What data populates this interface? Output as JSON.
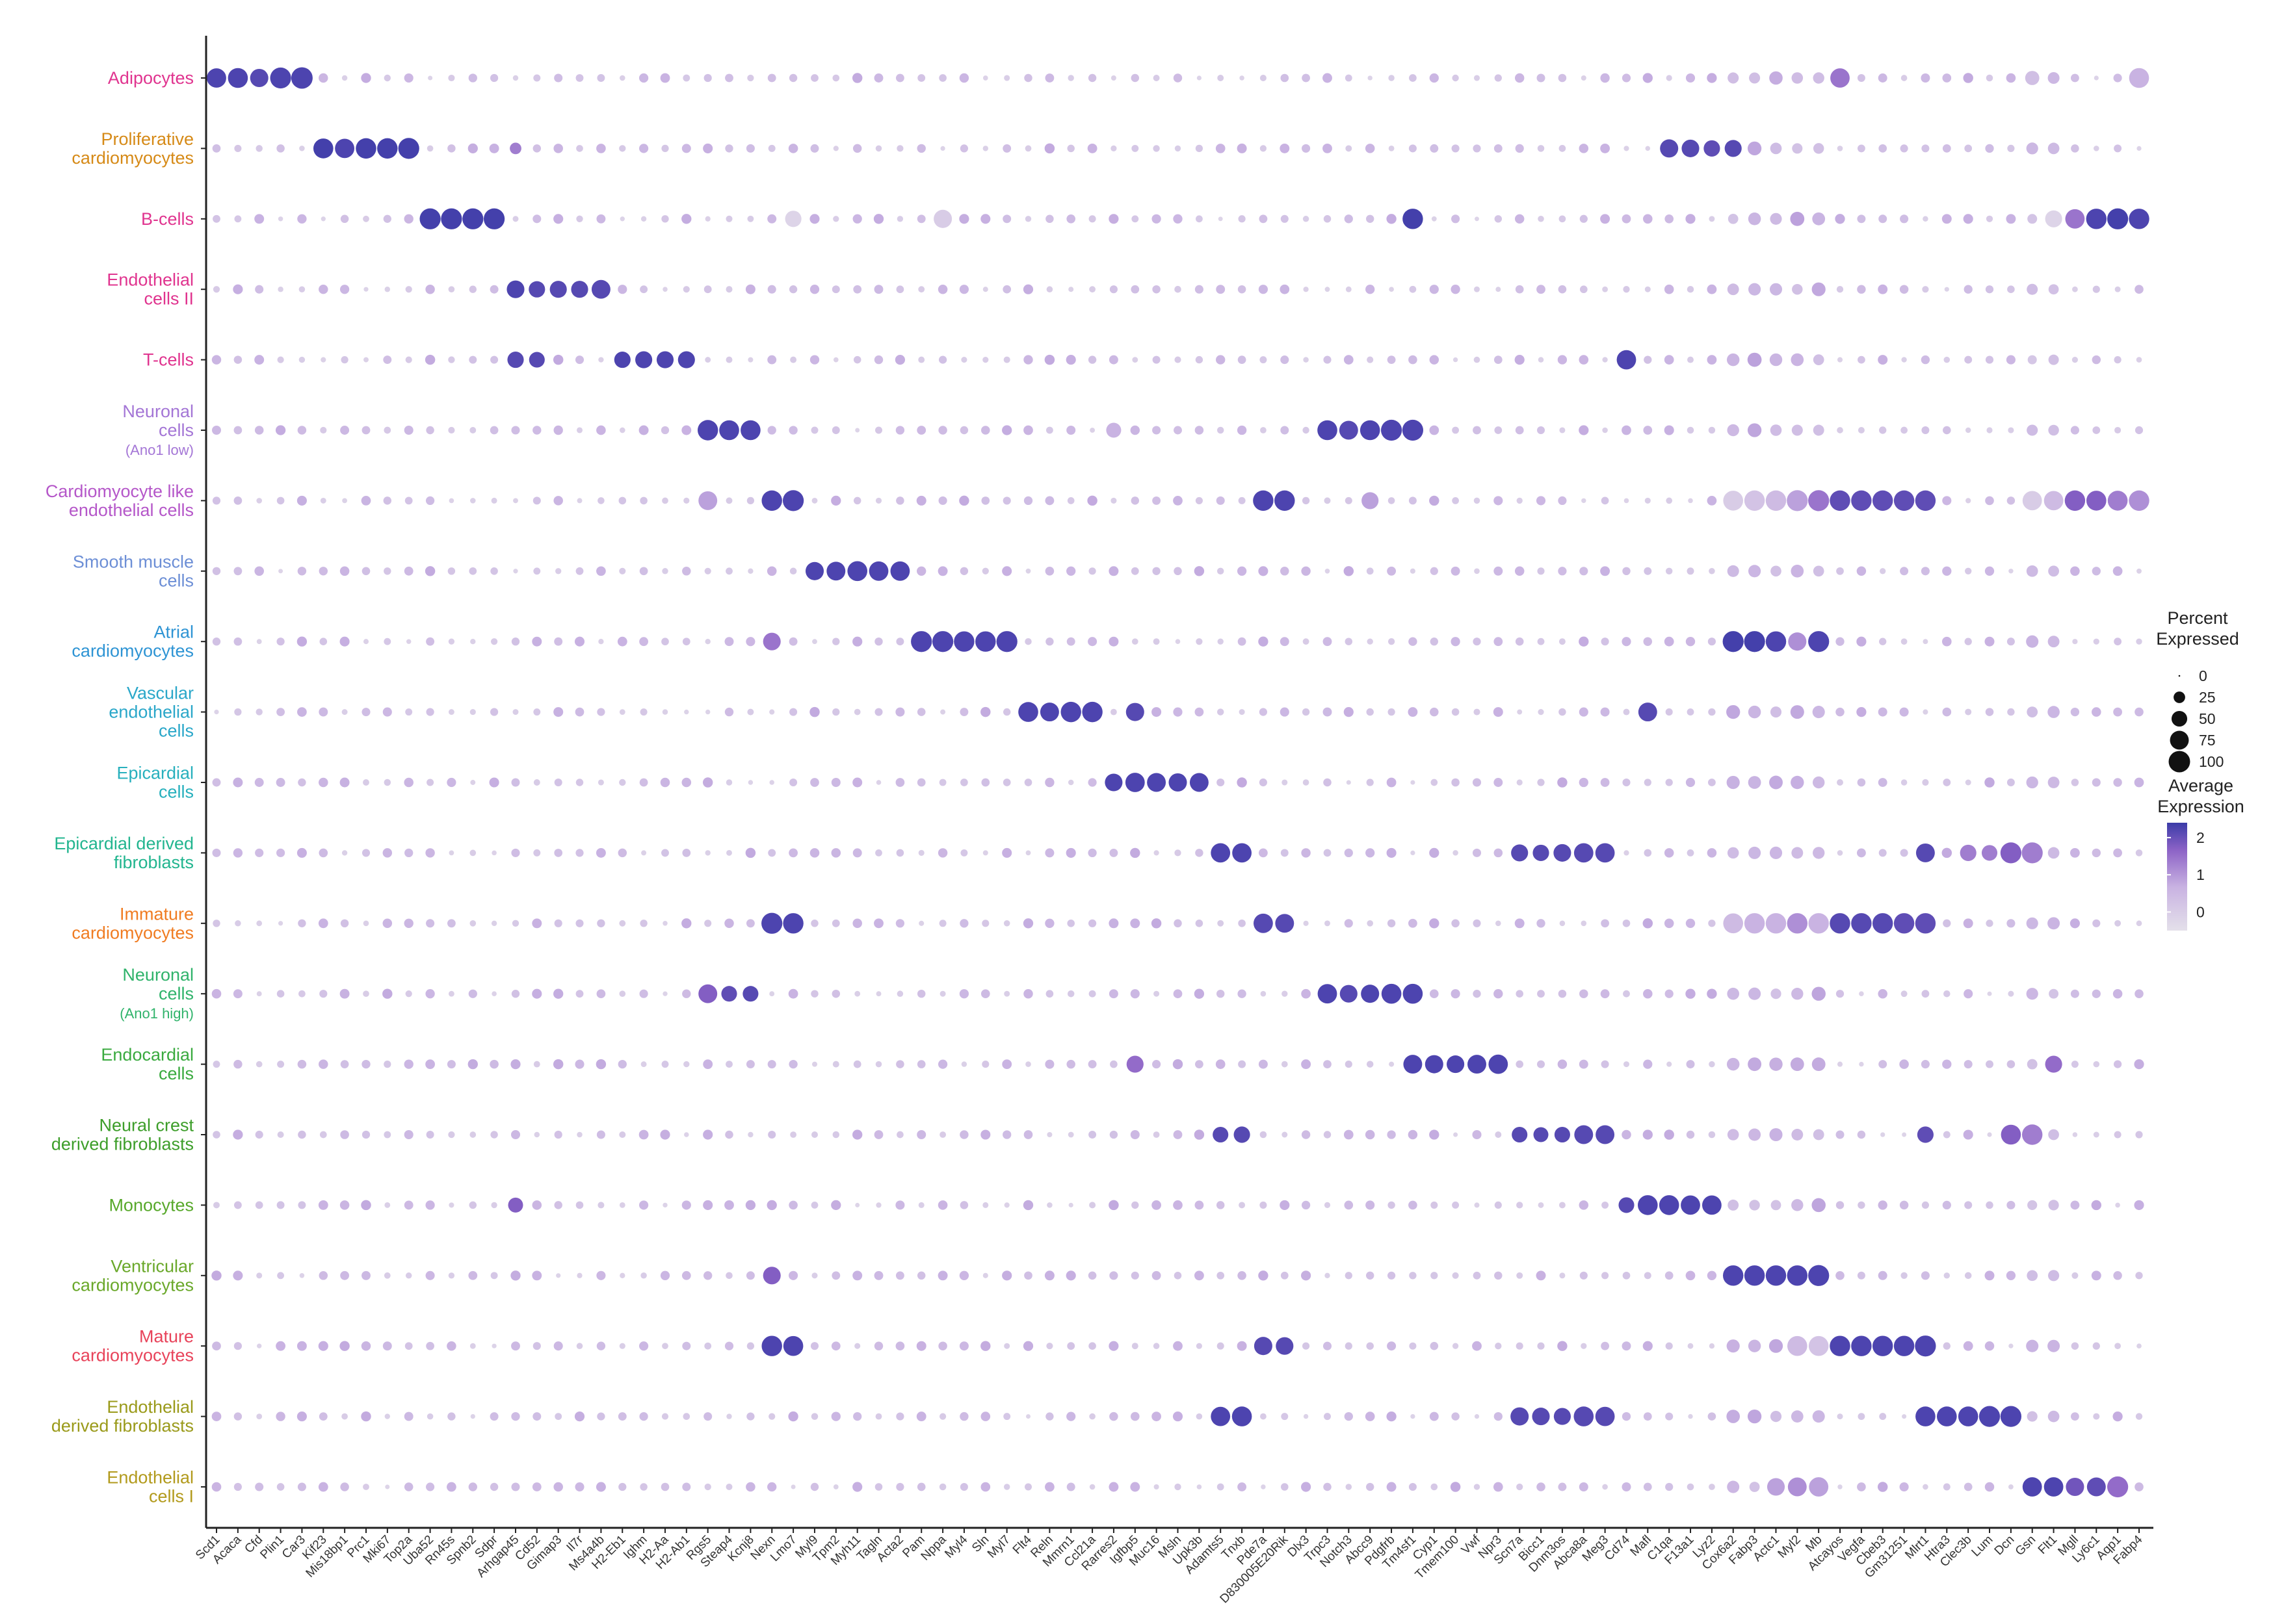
{
  "chart_data": {
    "type": "dotplot",
    "genes": [
      "Scd1",
      "Acaca",
      "Cfd",
      "Plin1",
      "Car3",
      "Kif23",
      "Mis18bp1",
      "Prc1",
      "Mki67",
      "Top2a",
      "Uba52",
      "Rn45s",
      "Spnb2",
      "Sdpr",
      "Arhgap45",
      "Cd52",
      "Gimap3",
      "Il7r",
      "Ms4a4b",
      "H2-Eb1",
      "Ighm",
      "H2-Aa",
      "H2-Ab1",
      "Rgs5",
      "Steap4",
      "Kcnj8",
      "Nexn",
      "Lmo7",
      "Myl9",
      "Tpm2",
      "Myh11",
      "Tagln",
      "Acta2",
      "Pam",
      "Nppa",
      "Myl4",
      "Sln",
      "Myl7",
      "Flt4",
      "Reln",
      "Mmrn1",
      "Ccl21a",
      "Rarres2",
      "Igfbp5",
      "Muc16",
      "Msln",
      "Upk3b",
      "Adamts5",
      "Tnxb",
      "Pde7a",
      "D830005E20Rik",
      "Dlx3",
      "Trpc3",
      "Notch3",
      "Abcc9",
      "Pdgfrb",
      "Tm4sf1",
      "Cyp1",
      "Tmem100",
      "Vwf",
      "Npr3",
      "Scn7a",
      "Bicc1",
      "Dnm3os",
      "Abca8a",
      "Meg3",
      "Cd74",
      "Mafl",
      "C1qa",
      "F13a1",
      "Lyz2",
      "Cox6a2",
      "Fabp3",
      "Actc1",
      "Myl2",
      "Mb",
      "Atcayos",
      "Vegfa",
      "Cbeb3",
      "Gm31251",
      "Mlrt1",
      "Htra3",
      "Clec3b",
      "Lum",
      "Dcn",
      "Gsn",
      "Flt1",
      "Mgll",
      "Ly6c1",
      "Aqp1",
      "Fabp4"
    ],
    "cell_types": [
      {
        "label": "Adipocytes",
        "color": "#e0348f"
      },
      {
        "label": "Proliferative\ncardiomyocytes",
        "color": "#d68a17"
      },
      {
        "label": "B-cells",
        "color": "#e0348f"
      },
      {
        "label": "Endothelial\ncells II",
        "color": "#e0348f"
      },
      {
        "label": "T-cells",
        "color": "#e0348f"
      },
      {
        "label": "Neuronal\ncells\n(Ano1 low)",
        "color": "#a476d6"
      },
      {
        "label": "Cardiomyocyte like\nendothelial cells",
        "color": "#b557c9"
      },
      {
        "label": "Smooth muscle\ncells",
        "color": "#6d8fd6"
      },
      {
        "label": "Atrial\ncardiomyocytes",
        "color": "#2e94d4"
      },
      {
        "label": "Vascular\nendothelial\ncells",
        "color": "#2aa7c9"
      },
      {
        "label": "Epicardial\ncells",
        "color": "#27b0bd"
      },
      {
        "label": "Epicardial derived\nfibroblasts",
        "color": "#22b58f"
      },
      {
        "label": "Immature\ncardiomyocytes",
        "color": "#f07c22"
      },
      {
        "label": "Neuronal\ncells\n(Ano1 high)",
        "color": "#30b36b"
      },
      {
        "label": "Endocardial\ncells",
        "color": "#3aaa3f"
      },
      {
        "label": "Neural crest\nderived fibroblasts",
        "color": "#3d9e2a"
      },
      {
        "label": "Monocytes",
        "color": "#57a82a"
      },
      {
        "label": "Ventricular\ncardiomyocytes",
        "color": "#6aa82a"
      },
      {
        "label": "Mature\ncardiomyocytes",
        "color": "#e8435a"
      },
      {
        "label": "Endothelial\nderived fibroblasts",
        "color": "#9a9a1a"
      },
      {
        "label": "Endothelial\ncells I",
        "color": "#b29a1c"
      }
    ],
    "markers": [
      {
        "row": 0,
        "genes": {
          "0": [
            80,
            2.2
          ],
          "1": [
            85,
            2.2
          ],
          "2": [
            70,
            2.1
          ],
          "3": [
            95,
            2.2
          ],
          "4": [
            100,
            2.2
          ],
          "76": [
            80,
            1.3
          ],
          "90": [
            85,
            0.6
          ],
          "85": [
            40,
            0.3
          ],
          "65": [
            15,
            0.5
          ]
        }
      },
      {
        "row": 1,
        "genes": {
          "5": [
            85,
            2.3
          ],
          "6": [
            80,
            2.2
          ],
          "7": [
            90,
            2.3
          ],
          "8": [
            90,
            2.3
          ],
          "9": [
            95,
            2.3
          ],
          "14": [
            25,
            1.2
          ],
          "68": [
            70,
            2.1
          ],
          "69": [
            65,
            2.1
          ],
          "70": [
            55,
            2.0
          ],
          "71": [
            60,
            2.1
          ]
        }
      },
      {
        "row": 2,
        "genes": {
          "10": [
            95,
            2.3
          ],
          "11": [
            95,
            2.3
          ],
          "12": [
            95,
            2.3
          ],
          "13": [
            95,
            2.3
          ],
          "56": [
            90,
            2.3
          ],
          "27": [
            55,
            -0.2
          ],
          "34": [
            70,
            0.0
          ],
          "88": [
            90,
            2.2
          ],
          "89": [
            95,
            2.3
          ],
          "90": [
            90,
            2.2
          ],
          "91": [
            75,
            2.1
          ],
          "92": [
            95,
            2.3
          ],
          "86": [
            60,
            -0.2
          ],
          "87": [
            80,
            1.3
          ]
        }
      },
      {
        "row": 3,
        "genes": {
          "14": [
            65,
            2.2
          ],
          "15": [
            55,
            2.1
          ],
          "16": [
            60,
            2.1
          ],
          "17": [
            60,
            2.1
          ],
          "18": [
            75,
            2.1
          ]
        }
      },
      {
        "row": 4,
        "genes": {
          "14": [
            55,
            2.1
          ],
          "15": [
            50,
            2.1
          ],
          "19": [
            55,
            2.2
          ],
          "20": [
            60,
            2.2
          ],
          "21": [
            60,
            2.2
          ],
          "22": [
            60,
            2.2
          ],
          "66": [
            80,
            2.2
          ]
        }
      },
      {
        "row": 5,
        "genes": {
          "23": [
            90,
            2.2
          ],
          "24": [
            85,
            2.2
          ],
          "25": [
            85,
            2.2
          ],
          "52": [
            85,
            2.2
          ],
          "53": [
            75,
            2.1
          ],
          "54": [
            85,
            2.2
          ],
          "55": [
            95,
            2.2
          ],
          "56": [
            95,
            2.2
          ],
          "42": [
            45,
            0.6
          ]
        }
      },
      {
        "row": 6,
        "genes": {
          "23": [
            75,
            0.8
          ],
          "26": [
            90,
            2.2
          ],
          "27": [
            95,
            2.2
          ],
          "49": [
            90,
            2.2
          ],
          "50": [
            90,
            2.2
          ],
          "54": [
            60,
            0.8
          ],
          "71": [
            85,
            0.0
          ],
          "72": [
            90,
            0.2
          ],
          "73": [
            90,
            0.4
          ],
          "74": [
            95,
            0.8
          ],
          "75": [
            95,
            1.3
          ],
          "76": [
            90,
            2.0
          ],
          "77": [
            90,
            2.0
          ],
          "78": [
            90,
            2.0
          ],
          "79": [
            90,
            2.0
          ],
          "80": [
            90,
            2.0
          ],
          "85": [
            80,
            0.0
          ],
          "86": [
            80,
            0.4
          ],
          "87": [
            90,
            1.6
          ],
          "88": [
            85,
            1.6
          ],
          "89": [
            85,
            1.2
          ],
          "90": [
            90,
            1.0
          ]
        }
      },
      {
        "row": 7,
        "genes": {
          "28": [
            70,
            2.2
          ],
          "29": [
            75,
            2.2
          ],
          "30": [
            85,
            2.2
          ],
          "31": [
            80,
            2.2
          ],
          "32": [
            80,
            2.2
          ]
        }
      },
      {
        "row": 8,
        "genes": {
          "26": [
            65,
            1.3
          ],
          "33": [
            95,
            2.2
          ],
          "34": [
            95,
            2.2
          ],
          "35": [
            90,
            2.2
          ],
          "36": [
            90,
            2.2
          ],
          "37": [
            95,
            2.2
          ],
          "71": [
            95,
            2.3
          ],
          "72": [
            95,
            2.3
          ],
          "73": [
            90,
            2.2
          ],
          "74": [
            70,
            1.0
          ],
          "75": [
            95,
            2.2
          ]
        }
      },
      {
        "row": 9,
        "genes": {
          "38": [
            85,
            2.2
          ],
          "39": [
            75,
            2.2
          ],
          "40": [
            90,
            2.2
          ],
          "41": [
            90,
            2.2
          ],
          "43": [
            70,
            2.1
          ],
          "67": [
            75,
            2.1
          ]
        }
      },
      {
        "row": 10,
        "genes": {
          "42": [
            65,
            2.2
          ],
          "43": [
            80,
            2.2
          ],
          "44": [
            75,
            2.2
          ],
          "45": [
            70,
            2.2
          ],
          "46": [
            75,
            2.2
          ]
        }
      },
      {
        "row": 11,
        "genes": {
          "47": [
            80,
            2.2
          ],
          "48": [
            80,
            2.2
          ],
          "61": [
            60,
            2.1
          ],
          "62": [
            55,
            2.1
          ],
          "63": [
            65,
            2.1
          ],
          "64": [
            80,
            2.1
          ],
          "65": [
            80,
            2.1
          ],
          "80": [
            75,
            2.1
          ],
          "82": [
            55,
            1.2
          ],
          "83": [
            50,
            1.2
          ],
          "84": [
            95,
            1.6
          ],
          "85": [
            95,
            1.2
          ]
        }
      },
      {
        "row": 12,
        "genes": {
          "26": [
            95,
            2.2
          ],
          "27": [
            90,
            2.2
          ],
          "49": [
            80,
            2.1
          ],
          "50": [
            75,
            2.1
          ],
          "71": [
            85,
            0.4
          ],
          "72": [
            90,
            0.6
          ],
          "73": [
            90,
            0.6
          ],
          "74": [
            90,
            1.0
          ],
          "75": [
            90,
            0.6
          ],
          "76": [
            90,
            2.1
          ],
          "77": [
            90,
            2.1
          ],
          "78": [
            90,
            2.1
          ],
          "79": [
            90,
            2.0
          ],
          "80": [
            90,
            2.0
          ]
        }
      },
      {
        "row": 13,
        "genes": {
          "23": [
            75,
            1.6
          ],
          "24": [
            50,
            2.0
          ],
          "25": [
            50,
            2.1
          ],
          "52": [
            80,
            2.2
          ],
          "53": [
            65,
            2.1
          ],
          "54": [
            70,
            2.2
          ],
          "55": [
            85,
            2.2
          ],
          "56": [
            85,
            2.2
          ]
        }
      },
      {
        "row": 14,
        "genes": {
          "56": [
            75,
            2.2
          ],
          "57": [
            70,
            2.2
          ],
          "58": [
            65,
            2.2
          ],
          "59": [
            75,
            2.2
          ],
          "60": [
            80,
            2.2
          ],
          "43": [
            60,
            1.4
          ],
          "86": [
            60,
            1.4
          ]
        }
      },
      {
        "row": 15,
        "genes": {
          "47": [
            50,
            2.1
          ],
          "48": [
            55,
            2.1
          ],
          "61": [
            50,
            2.1
          ],
          "62": [
            45,
            2.1
          ],
          "63": [
            50,
            2.1
          ],
          "64": [
            75,
            2.1
          ],
          "65": [
            75,
            2.1
          ],
          "80": [
            55,
            2.0
          ],
          "84": [
            85,
            1.6
          ],
          "85": [
            90,
            1.2
          ]
        }
      },
      {
        "row": 16,
        "genes": {
          "14": [
            45,
            1.6
          ],
          "66": [
            50,
            2.1
          ],
          "67": [
            85,
            2.2
          ],
          "68": [
            85,
            2.2
          ],
          "69": [
            80,
            2.2
          ],
          "70": [
            80,
            2.2
          ]
        }
      },
      {
        "row": 17,
        "genes": {
          "26": [
            65,
            1.6
          ],
          "71": [
            90,
            2.2
          ],
          "72": [
            90,
            2.2
          ],
          "73": [
            90,
            2.2
          ],
          "74": [
            90,
            2.2
          ],
          "75": [
            95,
            2.2
          ]
        }
      },
      {
        "row": 18,
        "genes": {
          "26": [
            90,
            2.2
          ],
          "27": [
            85,
            2.2
          ],
          "49": [
            70,
            2.1
          ],
          "50": [
            65,
            2.1
          ],
          "76": [
            90,
            2.2
          ],
          "77": [
            90,
            2.2
          ],
          "78": [
            90,
            2.2
          ],
          "79": [
            90,
            2.2
          ],
          "80": [
            95,
            2.2
          ],
          "75": [
            85,
            0.2
          ],
          "74": [
            85,
            0.4
          ]
        }
      },
      {
        "row": 19,
        "genes": {
          "47": [
            80,
            2.2
          ],
          "48": [
            85,
            2.2
          ],
          "61": [
            70,
            2.1
          ],
          "62": [
            65,
            2.1
          ],
          "63": [
            60,
            2.1
          ],
          "64": [
            85,
            2.1
          ],
          "65": [
            80,
            2.1
          ],
          "80": [
            85,
            2.2
          ],
          "81": [
            85,
            2.2
          ],
          "82": [
            85,
            2.2
          ],
          "83": [
            95,
            2.2
          ],
          "84": [
            95,
            2.2
          ]
        }
      },
      {
        "row": 20,
        "genes": {
          "85": [
            80,
            2.2
          ],
          "86": [
            80,
            2.2
          ],
          "87": [
            70,
            1.8
          ],
          "88": [
            75,
            2.0
          ],
          "89": [
            95,
            1.4
          ],
          "75": [
            80,
            0.8
          ],
          "74": [
            75,
            1.0
          ],
          "73": [
            65,
            0.8
          ]
        }
      }
    ],
    "legend_size": {
      "title": "Percent\nExpressed",
      "values": [
        0,
        25,
        50,
        75,
        100
      ]
    },
    "legend_color": {
      "title": "Average\nExpression",
      "ticks": [
        2,
        1,
        0
      ],
      "range": [
        -0.5,
        2.4
      ],
      "low_color": "#e4e0ea",
      "high_color": "#3b3ca8"
    },
    "xlabel": "",
    "ylabel": ""
  }
}
